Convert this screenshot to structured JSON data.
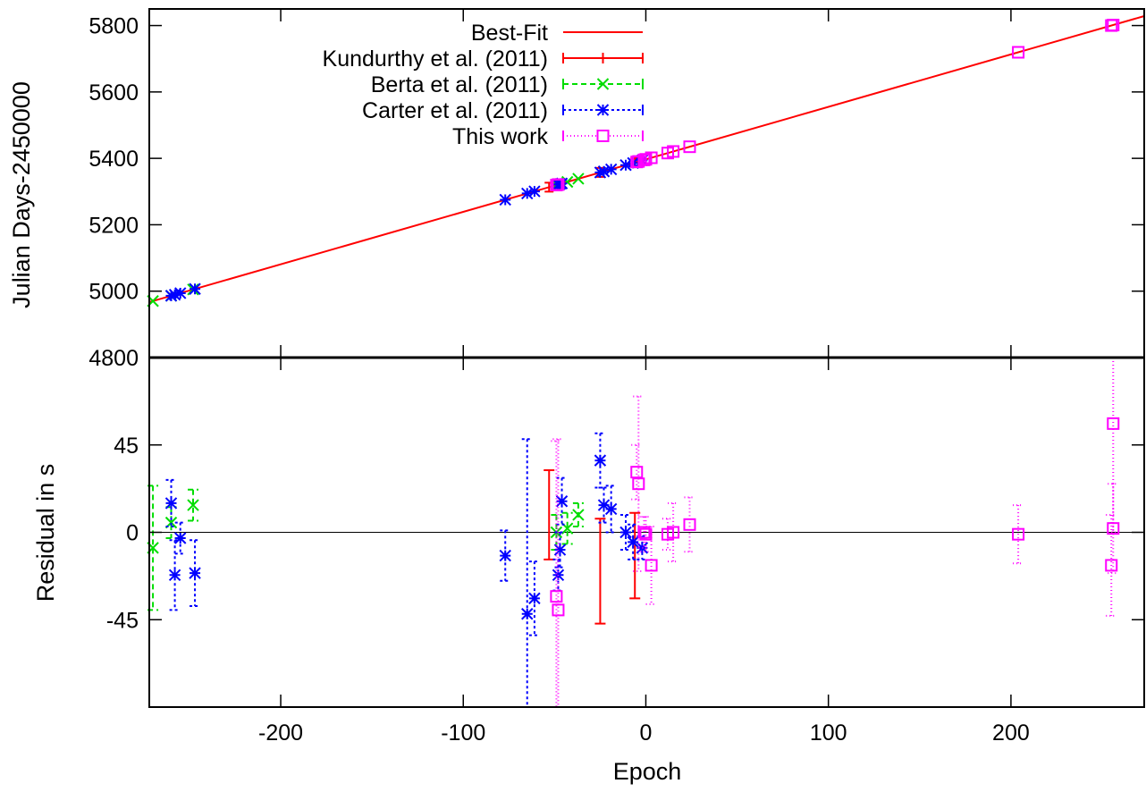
{
  "chart_data": [
    {
      "type": "scatter",
      "panel": "top",
      "ylabel": "Julian Days-2450000",
      "xlim": [
        -272,
        273
      ],
      "ylim": [
        4800,
        5850
      ],
      "yticks": [
        4800,
        5000,
        5200,
        5400,
        5600,
        5800
      ],
      "best_fit": {
        "name": "Best-Fit",
        "color": "#ff0000",
        "intercept": 5397.0,
        "slope": 1.5804
      },
      "series": [
        {
          "name": "Kundurthy et al. (2011)",
          "color": "#ff0000",
          "marker": "errorbar",
          "x": [
            -53,
            -25,
            -6
          ]
        },
        {
          "name": "Berta et al. (2011)",
          "color": "#00dd00",
          "marker": "x",
          "x": [
            -270,
            -260,
            -248,
            -49,
            -43,
            -37
          ]
        },
        {
          "name": "Carter et al. (2011)",
          "color": "#0000ff",
          "marker": "star",
          "x": [
            -260,
            -258,
            -255,
            -247,
            -77,
            -65,
            -61,
            -48,
            -47,
            -46,
            -25,
            -23,
            -19,
            -11,
            -7,
            -2
          ]
        },
        {
          "name": "This work",
          "color": "#ff00ff",
          "marker": "square",
          "x": [
            -49,
            -48,
            -5,
            -4,
            -1,
            0,
            3,
            12,
            15,
            24,
            204,
            255,
            256
          ]
        }
      ],
      "legend": "top-center"
    },
    {
      "type": "scatter",
      "panel": "bottom",
      "xlabel": "Epoch",
      "ylabel": "Residual in s",
      "xlim": [
        -272,
        273
      ],
      "ylim": [
        -90,
        90
      ],
      "yticks": [
        -45,
        0,
        45
      ],
      "xticks": [
        -200,
        -100,
        0,
        100,
        200
      ],
      "zero_line": true,
      "series": [
        {
          "name": "Kundurthy et al. (2011)",
          "color": "#ff0000",
          "marker": "errorbar",
          "dash": "",
          "points": [
            {
              "x": -53,
              "y": 9,
              "err": 23
            },
            {
              "x": -25,
              "y": -20,
              "err": 27
            },
            {
              "x": -6,
              "y": -12,
              "err": 22
            }
          ]
        },
        {
          "name": "Berta et al. (2011)",
          "color": "#00dd00",
          "marker": "x",
          "dash": "6,4",
          "points": [
            {
              "x": -270,
              "y": -8,
              "err": 32
            },
            {
              "x": -260,
              "y": 5,
              "err": 8
            },
            {
              "x": -248,
              "y": 14,
              "err": 8
            },
            {
              "x": -49,
              "y": 0,
              "err": 9
            },
            {
              "x": -43,
              "y": 2,
              "err": 8
            },
            {
              "x": -37,
              "y": 9,
              "err": 6
            }
          ]
        },
        {
          "name": "Carter et al. (2011)",
          "color": "#0000ff",
          "marker": "star",
          "dash": "3,3",
          "points": [
            {
              "x": -260,
              "y": 15,
              "err": 12
            },
            {
              "x": -258,
              "y": -22,
              "err": 18
            },
            {
              "x": -255,
              "y": -3,
              "err": 8
            },
            {
              "x": -247,
              "y": -21,
              "err": 17
            },
            {
              "x": -77,
              "y": -12,
              "err": 13
            },
            {
              "x": -65,
              "y": -42,
              "err": 90
            },
            {
              "x": -61,
              "y": -34,
              "err": 19
            },
            {
              "x": -48,
              "y": -22,
              "err": 8
            },
            {
              "x": -47,
              "y": -9,
              "err": 9
            },
            {
              "x": -46,
              "y": 16,
              "err": 12
            },
            {
              "x": -25,
              "y": 37,
              "err": 14
            },
            {
              "x": -23,
              "y": 14,
              "err": 9
            },
            {
              "x": -19,
              "y": 12,
              "err": 12
            },
            {
              "x": -11,
              "y": 0,
              "err": 9
            },
            {
              "x": -7,
              "y": -5,
              "err": 9
            },
            {
              "x": -2,
              "y": -8,
              "err": 6
            }
          ]
        },
        {
          "name": "This work",
          "color": "#ff00ff",
          "marker": "square",
          "dash": "1,3",
          "points": [
            {
              "x": -49,
              "y": -33,
              "err": 80
            },
            {
              "x": -48,
              "y": -40,
              "err": 88
            },
            {
              "x": -5,
              "y": 31,
              "err": 14
            },
            {
              "x": -4,
              "y": 25,
              "err": 45
            },
            {
              "x": -1,
              "y": 0,
              "err": 8
            },
            {
              "x": 0,
              "y": -1,
              "err": 9
            },
            {
              "x": 3,
              "y": -17,
              "err": 20
            },
            {
              "x": 12,
              "y": -1,
              "err": 8
            },
            {
              "x": 15,
              "y": 0,
              "err": 15
            },
            {
              "x": 24,
              "y": 4,
              "err": 14
            },
            {
              "x": 204,
              "y": -1,
              "err": 15
            },
            {
              "x": 255,
              "y": -17,
              "err": 26
            },
            {
              "x": 256,
              "y": 56,
              "err": 56
            },
            {
              "x": 256,
              "y": 2,
              "err": 23
            }
          ]
        }
      ]
    }
  ]
}
